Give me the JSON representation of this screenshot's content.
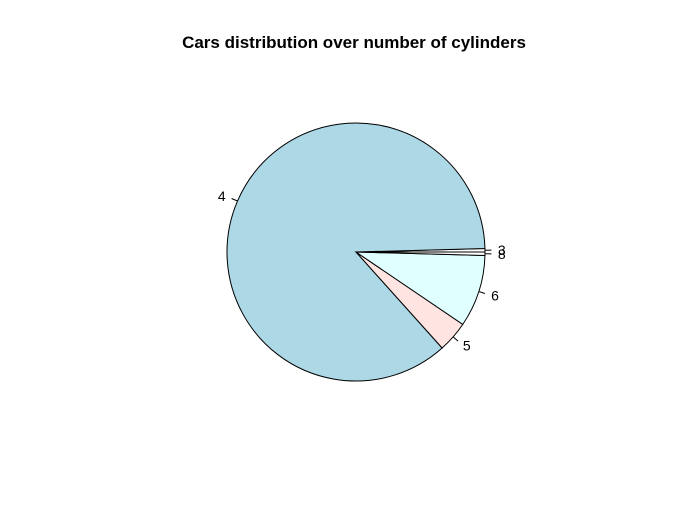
{
  "chart_data": {
    "type": "pie",
    "title": "Cars distribution over number of cylinders",
    "slices": [
      {
        "label": "3",
        "value": 1,
        "color": "#ffffff"
      },
      {
        "label": "4",
        "value": 200,
        "color": "#add8e6"
      },
      {
        "label": "5",
        "value": 9,
        "color": "#ffe4e1"
      },
      {
        "label": "6",
        "value": 21,
        "color": "#e0ffff"
      },
      {
        "label": "8",
        "value": 1,
        "color": "#ffffff"
      }
    ],
    "order": "counter-clockwise from 0 degrees, slices in listed order",
    "legend": "none"
  }
}
